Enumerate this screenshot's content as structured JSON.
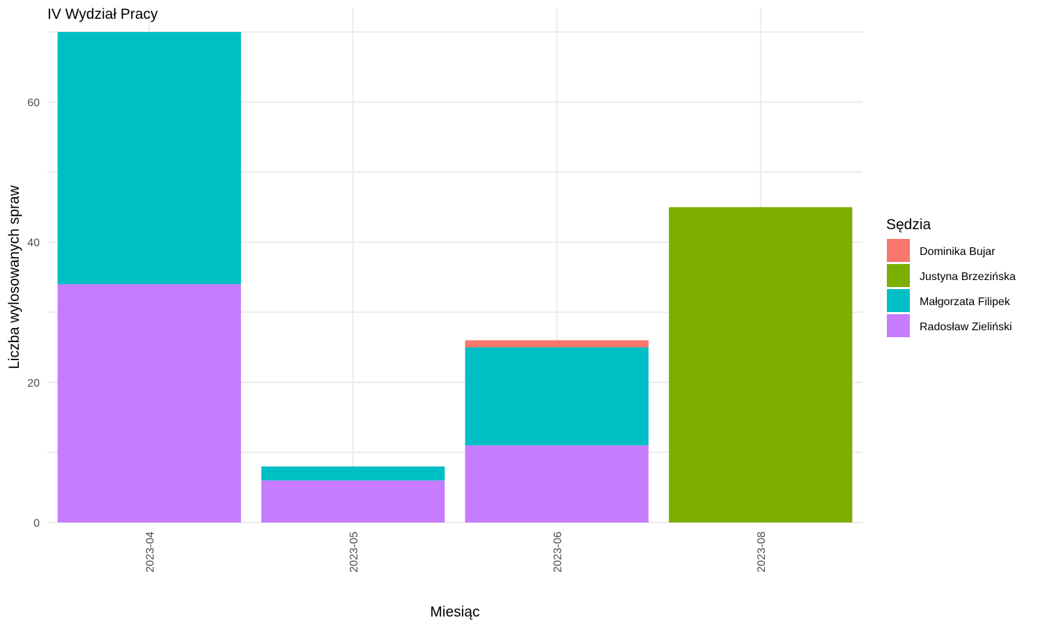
{
  "chart_data": {
    "type": "bar",
    "stacked": true,
    "title": "IV Wydział Pracy",
    "xlabel": "Miesiąc",
    "ylabel": "Liczba wylosowanych spraw",
    "categories": [
      "2023-04",
      "2023-05",
      "2023-06",
      "2023-08"
    ],
    "ylim": [
      0,
      70
    ],
    "y_ticks": [
      0,
      20,
      40,
      60
    ],
    "grid": true,
    "legend": {
      "title": "Sędzia",
      "placement": "right"
    },
    "series": [
      {
        "name": "Dominika Bujar",
        "color": "#F8766D",
        "values": [
          0,
          0,
          1,
          0
        ]
      },
      {
        "name": "Justyna Brzezińska",
        "color": "#7CAE00",
        "values": [
          0,
          0,
          0,
          45
        ]
      },
      {
        "name": "Małgorzata Filipek",
        "color": "#00BFC4",
        "values": [
          36,
          2,
          14,
          0
        ]
      },
      {
        "name": "Radosław Zieliński",
        "color": "#C77CFF",
        "values": [
          34,
          6,
          11,
          0
        ]
      }
    ],
    "stack_order_bottom_to_top": [
      "Radosław Zieliński",
      "Małgorzata Filipek",
      "Justyna Brzezińska",
      "Dominika Bujar"
    ]
  }
}
